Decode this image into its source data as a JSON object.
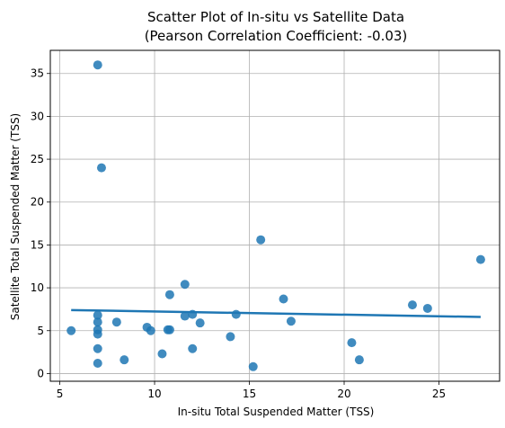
{
  "chart_data": {
    "type": "scatter",
    "title": "Scatter Plot of In-situ vs Satellite Data",
    "subtitle": "(Pearson Correlation Coefficient: -0.03)",
    "xlabel": "In-situ Total Suspended Matter (TSS)",
    "ylabel": "Satellite Total Suspended Matter (TSS)",
    "xlim": [
      4.5,
      28.2
    ],
    "ylim": [
      -0.9,
      37.7
    ],
    "xticks": [
      5,
      10,
      15,
      20,
      25
    ],
    "yticks": [
      0,
      5,
      10,
      15,
      20,
      25,
      30,
      35
    ],
    "grid": true,
    "colors": {
      "points": "#1f77b4",
      "line": "#1f77b4",
      "grid": "#b0b0b0"
    },
    "points": [
      {
        "x": 5.6,
        "y": 5.0
      },
      {
        "x": 7.0,
        "y": 36.0
      },
      {
        "x": 7.2,
        "y": 24.0
      },
      {
        "x": 7.0,
        "y": 6.8
      },
      {
        "x": 7.0,
        "y": 6.0
      },
      {
        "x": 7.0,
        "y": 5.1
      },
      {
        "x": 7.0,
        "y": 4.6
      },
      {
        "x": 7.0,
        "y": 2.9
      },
      {
        "x": 7.0,
        "y": 1.2
      },
      {
        "x": 8.0,
        "y": 6.0
      },
      {
        "x": 8.4,
        "y": 1.6
      },
      {
        "x": 9.6,
        "y": 5.4
      },
      {
        "x": 9.8,
        "y": 5.0
      },
      {
        "x": 10.4,
        "y": 2.3
      },
      {
        "x": 10.7,
        "y": 5.1
      },
      {
        "x": 10.8,
        "y": 5.1
      },
      {
        "x": 10.8,
        "y": 9.2
      },
      {
        "x": 11.6,
        "y": 10.4
      },
      {
        "x": 11.6,
        "y": 6.7
      },
      {
        "x": 12.0,
        "y": 6.9
      },
      {
        "x": 12.0,
        "y": 2.9
      },
      {
        "x": 12.4,
        "y": 5.9
      },
      {
        "x": 14.0,
        "y": 4.3
      },
      {
        "x": 14.3,
        "y": 6.9
      },
      {
        "x": 15.2,
        "y": 0.8
      },
      {
        "x": 15.6,
        "y": 15.6
      },
      {
        "x": 16.8,
        "y": 8.7
      },
      {
        "x": 17.2,
        "y": 6.1
      },
      {
        "x": 20.4,
        "y": 3.6
      },
      {
        "x": 20.8,
        "y": 1.6
      },
      {
        "x": 23.6,
        "y": 8.0
      },
      {
        "x": 24.4,
        "y": 7.6
      },
      {
        "x": 27.2,
        "y": 13.3
      }
    ],
    "regression": {
      "x": [
        5.6,
        27.2
      ],
      "y": [
        7.4,
        6.6
      ]
    }
  }
}
